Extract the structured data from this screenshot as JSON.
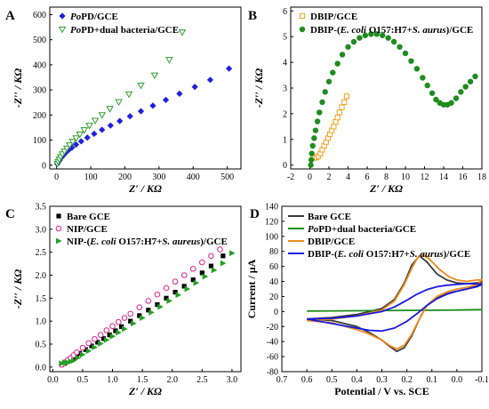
{
  "chart_data": [
    {
      "panel": "A",
      "type": "scatter",
      "xlabel": "Z′ / KΩ",
      "ylabel": "-Z′′ / KΩ",
      "xlim": [
        -20,
        540
      ],
      "ylim": [
        -15,
        630
      ],
      "xticks": [
        0,
        100,
        200,
        300,
        400,
        500
      ],
      "yticks": [
        0,
        100,
        200,
        300,
        400,
        500,
        600
      ],
      "legend": "top-left",
      "series": [
        {
          "name": "PoPD/GCE",
          "marker": "diamond-filled",
          "color": "#1f1fe0",
          "x": [
            2,
            5,
            9,
            14,
            20,
            27,
            35,
            45,
            57,
            72,
            90,
            110,
            133,
            158,
            185,
            215,
            247,
            282,
            320,
            360,
            405,
            450,
            505
          ],
          "y": [
            5,
            12,
            20,
            30,
            40,
            50,
            60,
            70,
            82,
            95,
            110,
            125,
            141,
            158,
            176,
            195,
            215,
            237,
            260,
            285,
            312,
            340,
            385
          ]
        },
        {
          "name": "PoPD+dual bacteria/GCE",
          "marker": "triangle-down-open",
          "color": "#2e9e2e",
          "x": [
            2,
            5,
            8,
            12,
            17,
            23,
            30,
            38,
            47,
            57,
            68,
            81,
            96,
            113,
            133,
            156,
            182,
            212,
            247,
            287,
            330,
            368
          ],
          "y": [
            6,
            14,
            23,
            33,
            44,
            55,
            67,
            80,
            94,
            108,
            123,
            140,
            158,
            178,
            200,
            225,
            252,
            283,
            318,
            358,
            420,
            530
          ]
        }
      ]
    },
    {
      "panel": "B",
      "type": "scatter",
      "xlabel": "Z′ / KΩ",
      "ylabel": "-Z′′ / KΩ",
      "xlim": [
        -2,
        18
      ],
      "ylim": [
        -0.15,
        6.15
      ],
      "xticks": [
        -2,
        0,
        2,
        4,
        6,
        8,
        10,
        12,
        14,
        16,
        18
      ],
      "yticks": [
        0,
        1,
        2,
        3,
        4,
        5,
        6
      ],
      "legend": "top-left",
      "series": [
        {
          "name": "DBIP/GCE",
          "marker": "square-open",
          "color": "#f0a020",
          "x": [
            0.35,
            0.5,
            0.7,
            0.9,
            1.1,
            1.3,
            1.5,
            1.7,
            1.9,
            2.1,
            2.3,
            2.5,
            2.7,
            2.9,
            3.1,
            3.35,
            3.6,
            3.85
          ],
          "y": [
            0.3,
            0.28,
            0.3,
            0.35,
            0.45,
            0.6,
            0.75,
            0.9,
            1.05,
            1.2,
            1.35,
            1.5,
            1.68,
            1.85,
            2.05,
            2.25,
            2.45,
            2.68
          ]
        },
        {
          "name": "DBIP-(E. coli O157:H7+S. aurus)/GCE",
          "marker": "circle-filled",
          "color": "#1e8c1e",
          "x": [
            0.1,
            0.15,
            0.2,
            0.3,
            0.45,
            0.6,
            0.8,
            1.0,
            1.3,
            1.6,
            2.0,
            2.4,
            2.9,
            3.4,
            4.0,
            4.6,
            5.2,
            5.8,
            6.4,
            7.0,
            7.6,
            8.2,
            8.8,
            9.4,
            10.0,
            10.6,
            11.2,
            11.8,
            12.3,
            12.8,
            13.2,
            13.6,
            14.0,
            14.4,
            14.8,
            15.3,
            15.8,
            16.3,
            16.8,
            17.3
          ],
          "y": [
            0.0,
            0.2,
            0.45,
            0.75,
            1.05,
            1.35,
            1.7,
            2.05,
            2.45,
            2.85,
            3.25,
            3.6,
            3.95,
            4.3,
            4.6,
            4.8,
            4.95,
            5.05,
            5.1,
            5.1,
            5.05,
            4.95,
            4.8,
            4.6,
            4.35,
            4.05,
            3.75,
            3.4,
            3.1,
            2.8,
            2.55,
            2.42,
            2.35,
            2.35,
            2.42,
            2.6,
            2.85,
            3.05,
            3.25,
            3.45
          ]
        }
      ]
    },
    {
      "panel": "C",
      "type": "scatter",
      "xlabel": "Z′ / KΩ",
      "ylabel": "-Z′′ / KΩ",
      "xlim": [
        -0.05,
        3.15
      ],
      "ylim": [
        -0.1,
        3.5
      ],
      "xticks": [
        0.0,
        0.5,
        1.0,
        1.5,
        2.0,
        2.5,
        3.0
      ],
      "yticks": [
        0.0,
        0.5,
        1.0,
        1.5,
        2.0,
        2.5,
        3.0,
        3.5
      ],
      "legend": "top-left",
      "series": [
        {
          "name": "Bare GCE",
          "marker": "square-filled",
          "color": "#000000",
          "x": [
            0.15,
            0.2,
            0.25,
            0.3,
            0.35,
            0.4,
            0.45,
            0.55,
            0.65,
            0.75,
            0.85,
            0.95,
            1.05,
            1.15,
            1.3,
            1.45,
            1.6,
            1.75,
            1.9,
            2.05,
            2.2,
            2.35,
            2.5,
            2.65,
            2.85
          ],
          "y": [
            0.05,
            0.08,
            0.12,
            0.16,
            0.2,
            0.25,
            0.3,
            0.38,
            0.46,
            0.54,
            0.62,
            0.7,
            0.79,
            0.88,
            1.0,
            1.12,
            1.24,
            1.36,
            1.5,
            1.63,
            1.76,
            1.9,
            2.05,
            2.2,
            2.42
          ]
        },
        {
          "name": "NIP/GCE",
          "marker": "circle-open",
          "color": "#e0208c",
          "x": [
            0.15,
            0.2,
            0.25,
            0.3,
            0.35,
            0.4,
            0.5,
            0.6,
            0.7,
            0.8,
            0.9,
            1.0,
            1.1,
            1.2,
            1.3,
            1.45,
            1.6,
            1.75,
            1.9,
            2.05,
            2.2,
            2.35,
            2.5,
            2.65,
            2.8
          ],
          "y": [
            0.05,
            0.1,
            0.15,
            0.2,
            0.26,
            0.32,
            0.42,
            0.52,
            0.61,
            0.7,
            0.8,
            0.89,
            0.98,
            1.07,
            1.16,
            1.3,
            1.44,
            1.58,
            1.72,
            1.86,
            2.0,
            2.14,
            2.28,
            2.42,
            2.56
          ]
        },
        {
          "name": "NIP-(E. coli O157:H7+S. aureus)/GCE",
          "marker": "triangle-right-filled",
          "color": "#22a022",
          "x": [
            0.15,
            0.2,
            0.25,
            0.3,
            0.35,
            0.42,
            0.5,
            0.6,
            0.7,
            0.8,
            0.9,
            1.0,
            1.1,
            1.2,
            1.35,
            1.5,
            1.65,
            1.8,
            1.95,
            2.1,
            2.25,
            2.4,
            2.55,
            2.7,
            2.85,
            3.0
          ],
          "y": [
            0.08,
            0.1,
            0.1,
            0.12,
            0.14,
            0.2,
            0.27,
            0.35,
            0.43,
            0.51,
            0.59,
            0.67,
            0.75,
            0.83,
            0.95,
            1.07,
            1.19,
            1.31,
            1.44,
            1.57,
            1.7,
            1.83,
            1.97,
            2.11,
            2.26,
            2.48
          ]
        }
      ]
    },
    {
      "panel": "D",
      "type": "line",
      "xlabel": "Potential / V vs. SCE",
      "ylabel": "Current / μA",
      "xlim": [
        0.7,
        -0.1
      ],
      "ylim": [
        -80,
        140
      ],
      "xticks": [
        0.7,
        0.6,
        0.5,
        0.4,
        0.3,
        0.2,
        0.1,
        0.0,
        -0.1
      ],
      "xtick_labels": [
        "0.7",
        "0.6",
        "0.5",
        "0.4",
        "0.3",
        "0.2",
        "0.1",
        "0.0",
        "-0.1"
      ],
      "yticks": [
        -80,
        -60,
        -40,
        -20,
        0,
        20,
        40,
        60,
        80,
        100,
        120,
        140
      ],
      "legend": "top-right",
      "series": [
        {
          "name": "Bare GCE",
          "color": "#3a3a3a",
          "x": [
            0.6,
            0.5,
            0.4,
            0.3,
            0.25,
            0.21,
            0.18,
            0.15,
            0.12,
            0.08,
            0.04,
            0.0,
            -0.04,
            -0.08,
            -0.1,
            -0.08,
            -0.04,
            0.0,
            0.04,
            0.08,
            0.12,
            0.15,
            0.18,
            0.21,
            0.24,
            0.27,
            0.3,
            0.35,
            0.4,
            0.5,
            0.6
          ],
          "y": [
            -10,
            -8,
            -4,
            4,
            16,
            38,
            62,
            74,
            66,
            50,
            42,
            38,
            37,
            38,
            40,
            34,
            30,
            27,
            24,
            19,
            8,
            -10,
            -32,
            -48,
            -53,
            -46,
            -38,
            -28,
            -20,
            -12,
            -10
          ]
        },
        {
          "name": "PoPD+dual bacteria/GCE",
          "color": "#1a8c1a",
          "x": [
            0.6,
            0.4,
            0.2,
            0.0,
            -0.1,
            0.0,
            0.2,
            0.4,
            0.6
          ],
          "y": [
            0.5,
            1,
            1.5,
            2,
            2.5,
            2,
            1.5,
            1,
            0.5
          ]
        },
        {
          "name": "DBIP/GCE",
          "color": "#f08a1a",
          "x": [
            0.6,
            0.5,
            0.4,
            0.3,
            0.25,
            0.21,
            0.18,
            0.16,
            0.14,
            0.11,
            0.07,
            0.03,
            0.0,
            -0.04,
            -0.08,
            -0.1,
            -0.08,
            -0.04,
            0.0,
            0.04,
            0.08,
            0.12,
            0.15,
            0.18,
            0.21,
            0.24,
            0.27,
            0.3,
            0.35,
            0.4,
            0.5,
            0.6
          ],
          "y": [
            -12,
            -10,
            -6,
            2,
            14,
            36,
            58,
            70,
            76,
            70,
            56,
            46,
            42,
            40,
            42,
            42,
            36,
            32,
            30,
            26,
            20,
            8,
            -10,
            -30,
            -45,
            -50,
            -45,
            -38,
            -30,
            -24,
            -15,
            -12
          ]
        },
        {
          "name": "DBIP-(E. coli O157:H7+S. aurus)/GCE",
          "color": "#1a1ae0",
          "x": [
            0.6,
            0.5,
            0.4,
            0.3,
            0.25,
            0.2,
            0.16,
            0.12,
            0.08,
            0.04,
            0.0,
            -0.04,
            -0.08,
            -0.1,
            -0.08,
            -0.04,
            0.0,
            0.04,
            0.08,
            0.12,
            0.16,
            0.2,
            0.25,
            0.3,
            0.35,
            0.4,
            0.5,
            0.6
          ],
          "y": [
            -10,
            -9,
            -6,
            0,
            6,
            15,
            23,
            29,
            33,
            35,
            36,
            37,
            37,
            36,
            33,
            30,
            27,
            23,
            17,
            8,
            -3,
            -13,
            -22,
            -26,
            -25,
            -22,
            -16,
            -10
          ]
        }
      ]
    }
  ]
}
